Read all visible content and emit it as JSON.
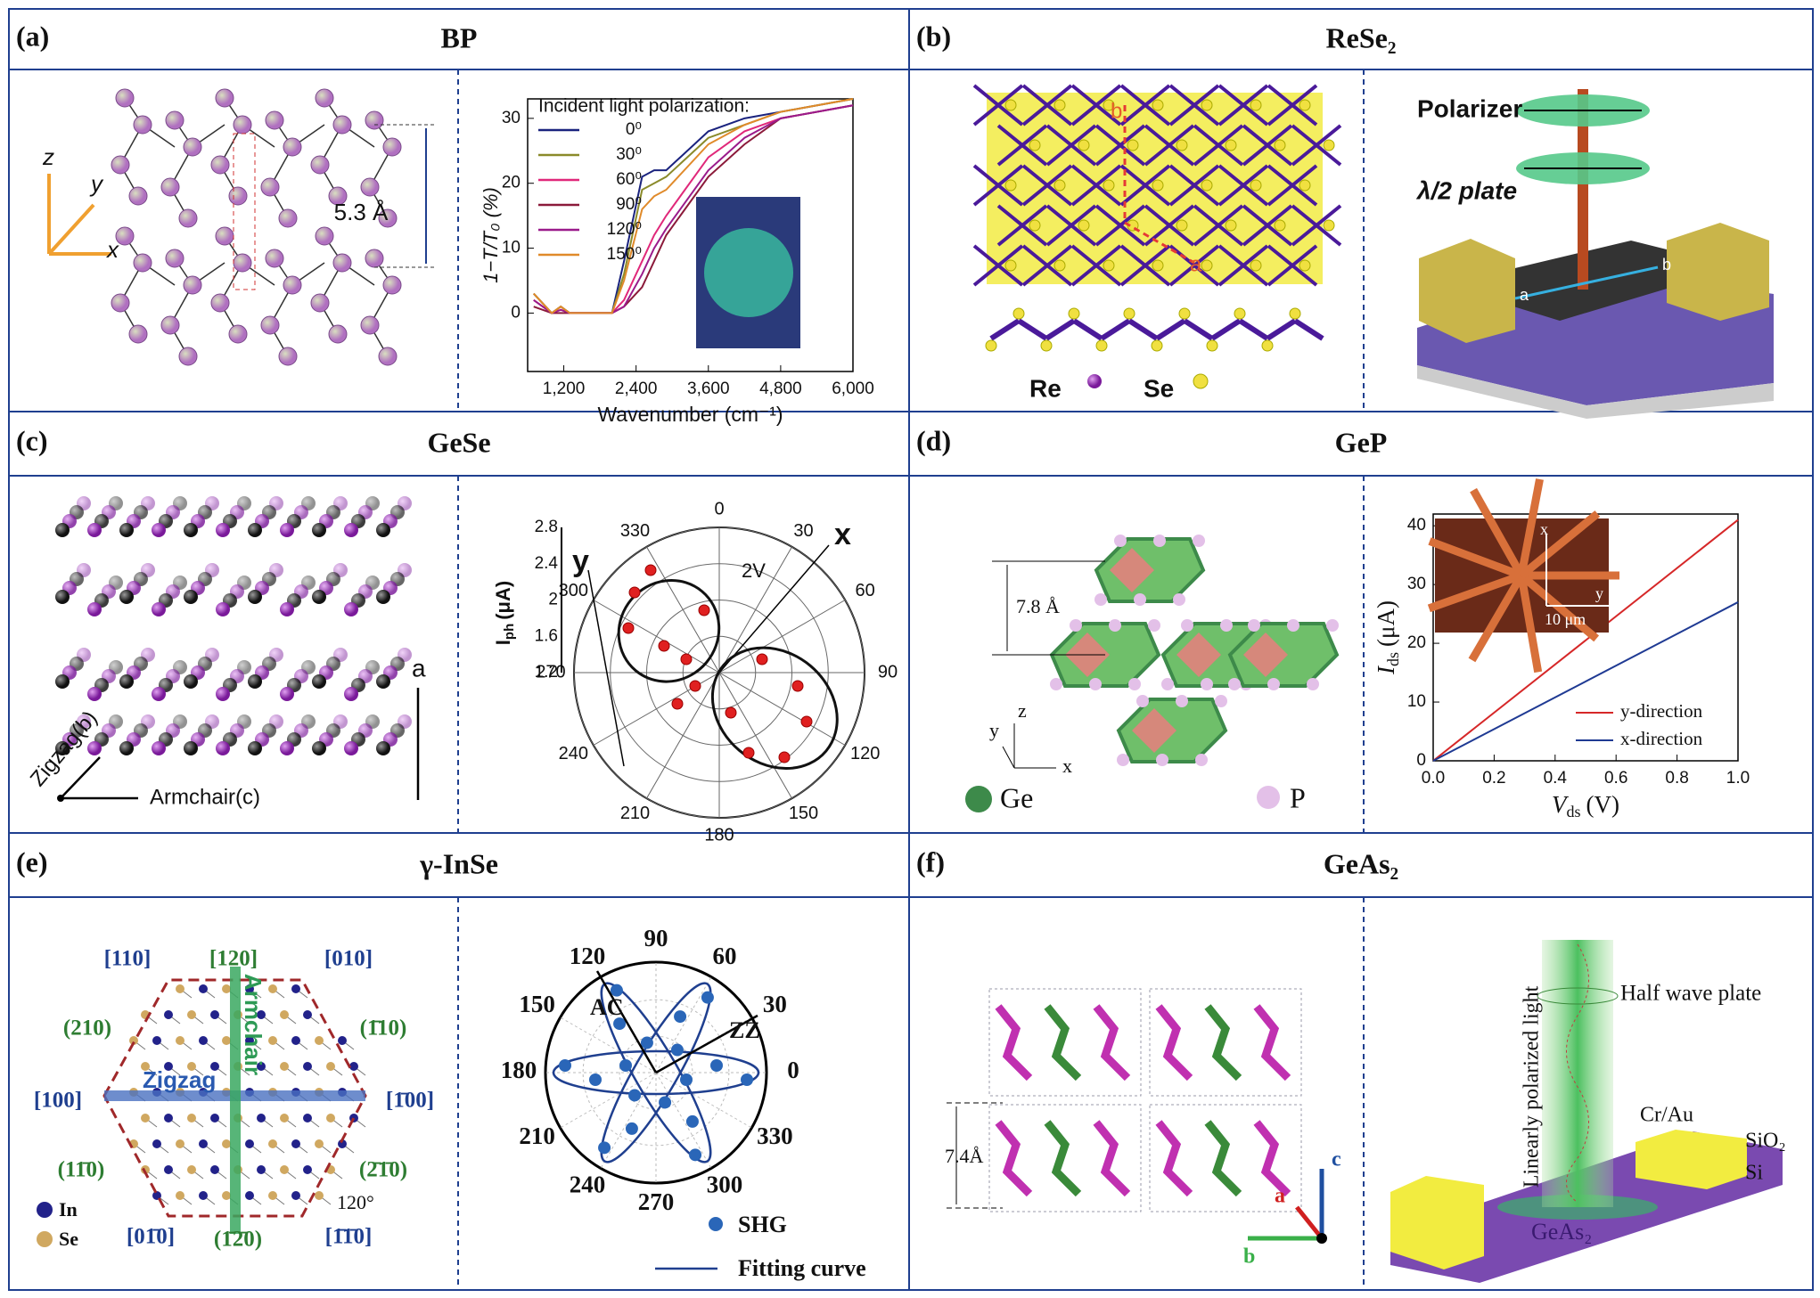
{
  "panels": [
    {
      "label": "(a)",
      "title": "BP",
      "left": {
        "axis_z": "z",
        "axis_y": "y",
        "axis_x": "x",
        "spacing": "5.3 Å"
      },
      "right": {
        "chart": {
          "type": "line",
          "legend_title": "Incident light polarization:",
          "x": [
            700,
            1000,
            1150,
            1300,
            2000,
            2200,
            2500,
            2700,
            2900,
            3600,
            4200,
            4800,
            6000
          ],
          "series": [
            {
              "name": "0⁰",
              "color": "#1a237e",
              "values": [
                3,
                0,
                1,
                0,
                0,
                8,
                21,
                22,
                22,
                28,
                30,
                31,
                33
              ]
            },
            {
              "name": "30⁰",
              "color": "#8a8a2a",
              "values": [
                3,
                0,
                1,
                0,
                0,
                6,
                19,
                20,
                21,
                27,
                29,
                31,
                33
              ]
            },
            {
              "name": "60⁰",
              "color": "#e0287a",
              "values": [
                2,
                0,
                0.5,
                0,
                0,
                2,
                8,
                12,
                15,
                24,
                28,
                30,
                32
              ]
            },
            {
              "name": "90⁰",
              "color": "#8b1a3a",
              "values": [
                1,
                0,
                0,
                0,
                0,
                1,
                4,
                8,
                12,
                21,
                26,
                30,
                32
              ]
            },
            {
              "name": "120⁰",
              "color": "#9b1b8b",
              "values": [
                2,
                0,
                0.5,
                0,
                0,
                1,
                6,
                10,
                13,
                22,
                27,
                30,
                32
              ]
            },
            {
              "name": "150⁰",
              "color": "#e08a2a",
              "values": [
                3,
                0,
                1,
                0,
                0,
                5,
                16,
                18,
                19,
                26,
                29,
                31,
                33
              ]
            }
          ],
          "xlim": [
            600,
            6000
          ],
          "ylim": [
            -9,
            33
          ],
          "xticks": [
            {
              "value": 1200,
              "label": "1,200"
            },
            {
              "value": 2400,
              "label": "2,400"
            },
            {
              "value": 3600,
              "label": "3,600"
            },
            {
              "value": 4800,
              "label": "4,800"
            },
            {
              "value": 6000,
              "label": "6,000"
            }
          ],
          "yticks": [
            0,
            10,
            20,
            30
          ],
          "xlabel": "Wavenumber (cm⁻¹)",
          "ylabel": "1−T/T₀ (%)"
        }
      }
    },
    {
      "label": "(b)",
      "title": "ReSe₂",
      "left": {
        "axis_b": "b",
        "axis_a": "a",
        "re": "Re",
        "se": "Se"
      },
      "right": {
        "polarizer": "Polarizer",
        "plate": "λ/2 plate",
        "axis_a": "a",
        "axis_b": "b"
      }
    },
    {
      "label": "(c)",
      "title": "GeSe",
      "left": {
        "axis_a": "a",
        "zigzag": "Zigzag(b)",
        "armchair": "Armchair(c)"
      },
      "right": {
        "chart": {
          "type": "polar",
          "thetaticks": [
            0,
            30,
            60,
            90,
            120,
            150,
            180,
            210,
            240,
            270,
            300,
            330
          ],
          "rlim": [
            1.2,
            2.8
          ],
          "rticks": [
            1.2,
            1.6,
            2.0,
            2.4,
            2.8
          ],
          "axis_y": "y",
          "axis_x": "x",
          "bias": "2V",
          "ylabel": {
            "main": "I",
            "sub": "ph",
            "unit": "(μA)"
          }
        }
      }
    },
    {
      "label": "(d)",
      "title": "GeP",
      "left": {
        "spacing": "7.8 Å",
        "axis_z": "z",
        "axis_y": "y",
        "axis_x": "x",
        "ge": "Ge",
        "p": "P"
      },
      "right": {
        "chart": {
          "type": "line",
          "x": [
            0,
            1
          ],
          "series": [
            {
              "name": "y-direction",
              "color": "#d62728",
              "values": [
                0,
                41
              ]
            },
            {
              "name": "x-direction",
              "color": "#1f3a93",
              "values": [
                0,
                27
              ]
            }
          ],
          "xlim": [
            0,
            1
          ],
          "ylim": [
            0,
            42
          ],
          "xticks": [
            {
              "value": 0,
              "label": "0.0"
            },
            0.2,
            0.4,
            0.6,
            0.8,
            {
              "value": 1,
              "label": "1.0"
            }
          ],
          "yticks": [
            0,
            10,
            20,
            30,
            40
          ],
          "xlabel": {
            "main": "V",
            "sub": "ds",
            "unit": "(V)"
          },
          "ylabel": {
            "main": "I",
            "sub": "ds",
            "unit": "(μA)"
          },
          "inset": {
            "axis_x": "x",
            "axis_y": "y",
            "scale": "10 μm"
          }
        }
      }
    },
    {
      "label": "(e)",
      "title": "γ-InSe",
      "left": {
        "miller": [
          "[110]",
          "[120]",
          "[010]",
          "(210)",
          "(1̄10)",
          "[100]",
          "[1̄00]",
          "(11̄0)",
          "(2̄1̄0)",
          "[01̄0]",
          "(1̄2̄0)",
          "[1̄1̄0]"
        ],
        "zigzag": "Zigzag",
        "armchair": "Armchair",
        "in": "In",
        "se": "Se",
        "angle": "120°"
      },
      "right": {
        "chart": {
          "type": "polar",
          "thetaticks": [
            0,
            30,
            60,
            90,
            120,
            150,
            180,
            210,
            240,
            270,
            300,
            330
          ],
          "ac": "AC",
          "zz": "ZZ",
          "legend": [
            "SHG",
            "Fitting curve"
          ]
        }
      }
    },
    {
      "label": "(f)",
      "title": "GeAs₂",
      "left": {
        "spacing": "7.4Å",
        "axis_c": "c",
        "axis_a": "a",
        "axis_b": "b"
      },
      "right": {
        "light": "Linearly polarized light",
        "plate": "Half wave plate",
        "contact": "Cr/Au",
        "sio2": "SiO₂",
        "si": "Si",
        "material": "GeAs₂"
      }
    }
  ]
}
